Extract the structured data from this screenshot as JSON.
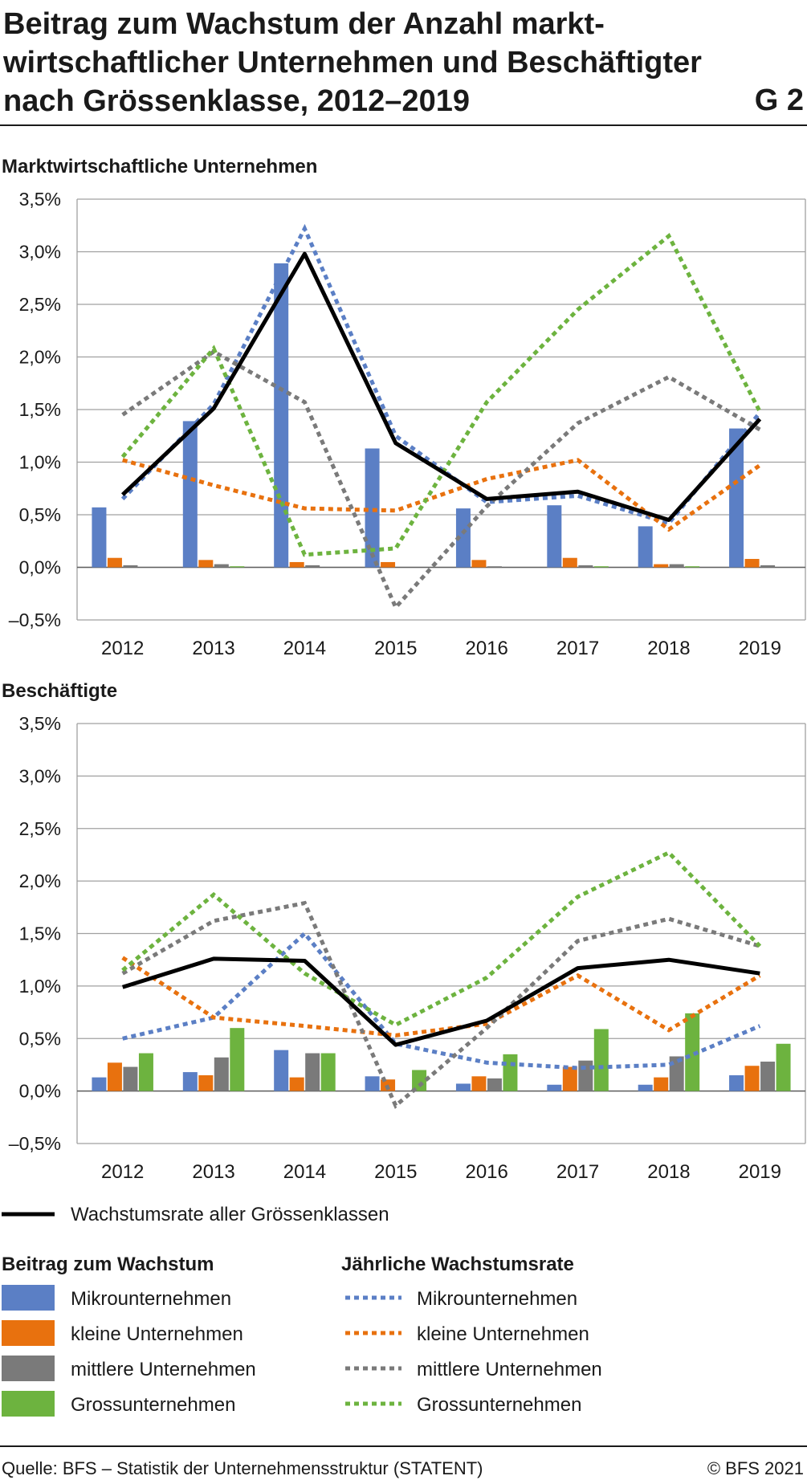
{
  "header": {
    "title_lines": [
      "Beitrag zum Wachstum der Anzahl markt-",
      "wirtschaftlicher Unternehmen und Beschäftigter",
      "nach Grössenklasse, 2012–2019"
    ],
    "graphic_number": "G 2"
  },
  "footer": {
    "source": "Quelle: BFS – Statistik der Unternehmensstruktur (STATENT)",
    "copyright": "© BFS 2021"
  },
  "colors": {
    "micro": "#5b7fc5",
    "small": "#e8710e",
    "medium": "#7a7a7a",
    "large": "#6db33f",
    "total": "#000000",
    "grid": "#a0a0a0"
  },
  "legend": {
    "total_label": "Wachstumsrate aller Grössenklassen",
    "bars_heading": "Beitrag zum Wachstum",
    "lines_heading": "Jährliche Wachstumsrate",
    "items": [
      "Mikrounternehmen",
      "kleine Unternehmen",
      "mittlere Unternehmen",
      "Grossunternehmen"
    ]
  },
  "chart_data": [
    {
      "type": "bar+line",
      "title": "Marktwirtschaftliche Unternehmen",
      "categories": [
        "2012",
        "2013",
        "2014",
        "2015",
        "2016",
        "2017",
        "2018",
        "2019"
      ],
      "ylim": [
        -0.5,
        3.5
      ],
      "yticks": [
        "3,5%",
        "3,0%",
        "2,5%",
        "2,0%",
        "1,5%",
        "1,0%",
        "0,5%",
        "0,0%",
        "–0,5%"
      ],
      "bars": [
        {
          "name": "Mikrounternehmen",
          "values": [
            0.57,
            1.39,
            2.89,
            1.13,
            0.56,
            0.59,
            0.39,
            1.32
          ]
        },
        {
          "name": "kleine Unternehmen",
          "values": [
            0.09,
            0.07,
            0.05,
            0.05,
            0.07,
            0.09,
            0.03,
            0.08
          ]
        },
        {
          "name": "mittlere Unternehmen",
          "values": [
            0.02,
            0.03,
            0.02,
            0.0,
            0.01,
            0.02,
            0.03,
            0.02
          ]
        },
        {
          "name": "Grossunternehmen",
          "values": [
            0.0,
            0.01,
            0.0,
            0.0,
            0.0,
            0.01,
            0.01,
            0.0
          ]
        }
      ],
      "rates": [
        {
          "name": "Mikrounternehmen",
          "values": [
            0.65,
            1.55,
            3.22,
            1.25,
            0.62,
            0.68,
            0.42,
            1.47
          ]
        },
        {
          "name": "kleine Unternehmen",
          "values": [
            1.02,
            0.78,
            0.56,
            0.54,
            0.84,
            1.02,
            0.36,
            0.97
          ]
        },
        {
          "name": "mittlere Unternehmen",
          "values": [
            1.45,
            2.05,
            1.57,
            -0.38,
            0.58,
            1.37,
            1.81,
            1.31
          ]
        },
        {
          "name": "Grossunternehmen",
          "values": [
            1.05,
            2.08,
            0.12,
            0.18,
            1.57,
            2.45,
            3.15,
            1.48
          ]
        }
      ],
      "total": {
        "name": "Wachstumsrate aller Grössenklassen",
        "values": [
          0.69,
          1.51,
          2.98,
          1.18,
          0.65,
          0.72,
          0.45,
          1.41
        ]
      }
    },
    {
      "type": "bar+line",
      "title": "Beschäftigte",
      "categories": [
        "2012",
        "2013",
        "2014",
        "2015",
        "2016",
        "2017",
        "2018",
        "2019"
      ],
      "ylim": [
        -0.5,
        3.5
      ],
      "yticks": [
        "3,5%",
        "3,0%",
        "2,5%",
        "2,0%",
        "1,5%",
        "1,0%",
        "0,5%",
        "0,0%",
        "–0,5%"
      ],
      "bars": [
        {
          "name": "Mikrounternehmen",
          "values": [
            0.13,
            0.18,
            0.39,
            0.14,
            0.07,
            0.06,
            0.06,
            0.15
          ]
        },
        {
          "name": "kleine Unternehmen",
          "values": [
            0.27,
            0.15,
            0.13,
            0.11,
            0.14,
            0.23,
            0.13,
            0.24
          ]
        },
        {
          "name": "mittlere Unternehmen",
          "values": [
            0.23,
            0.32,
            0.36,
            0.0,
            0.12,
            0.29,
            0.33,
            0.28
          ]
        },
        {
          "name": "Grossunternehmen",
          "values": [
            0.36,
            0.6,
            0.36,
            0.2,
            0.35,
            0.59,
            0.74,
            0.45
          ]
        }
      ],
      "rates": [
        {
          "name": "Mikrounternehmen",
          "values": [
            0.5,
            0.7,
            1.5,
            0.45,
            0.27,
            0.22,
            0.25,
            0.62
          ]
        },
        {
          "name": "kleine Unternehmen",
          "values": [
            1.27,
            0.7,
            0.62,
            0.53,
            0.64,
            1.1,
            0.58,
            1.1
          ]
        },
        {
          "name": "mittlere Unternehmen",
          "values": [
            1.12,
            1.62,
            1.79,
            -0.14,
            0.6,
            1.43,
            1.64,
            1.38
          ]
        },
        {
          "name": "Grossunternehmen",
          "values": [
            1.15,
            1.87,
            1.12,
            0.63,
            1.08,
            1.85,
            2.27,
            1.38
          ]
        }
      ],
      "total": {
        "name": "Wachstumsrate aller Grössenklassen",
        "values": [
          0.99,
          1.26,
          1.24,
          0.44,
          0.67,
          1.17,
          1.25,
          1.12
        ]
      }
    }
  ]
}
